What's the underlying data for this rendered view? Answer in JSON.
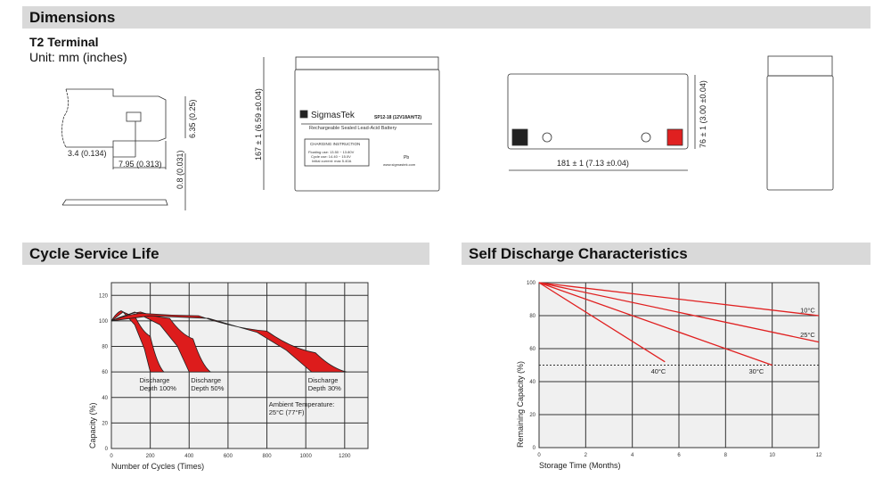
{
  "dimensions": {
    "title": "Dimensions",
    "terminal": "T2 Terminal",
    "unit": "Unit: mm (inches)",
    "terminal_dims": {
      "height": "6.35 (0.25)",
      "offset": "3.4 (0.134)",
      "width": "7.95 (0.313)",
      "thickness": "0.8 (0.031)"
    },
    "front": {
      "height_dim": "167 ± 1 (6.59 ±0.04)",
      "brand": "SigmasTek",
      "model": "SP12-18 (12V18AH/T2)",
      "subtitle": "Rechargeable Sealed Lead-Acid Battery",
      "charging_title": "CHARGING INSTRUCTION",
      "charging_lines": [
        "Floating use: 13.50 ~ 13.80V",
        "Cycle use: 14.40 ~ 15.0V",
        "Initial current: max 5.40A"
      ],
      "website": "www.sigmastek.com",
      "pb": "Pb"
    },
    "top": {
      "length_dim": "181 ± 1 (7.13 ±0.04)",
      "width_dim": "76 ± 1 (3.00 ±0.04)",
      "neg_color": "#222222",
      "pos_color": "#e02020"
    }
  },
  "chart_data": [
    {
      "type": "area",
      "title": "Cycle Service Life",
      "xlabel": "Number of Cycles (Times)",
      "ylabel": "Capacity (%)",
      "xlim": [
        0,
        1320
      ],
      "ylim": [
        0,
        130
      ],
      "xticks": [
        0,
        200,
        400,
        600,
        800,
        1000,
        1200
      ],
      "yticks": [
        0,
        20,
        40,
        60,
        80,
        100,
        120
      ],
      "grid": true,
      "color": "#dd1c1c",
      "series": [
        {
          "name": "Discharge Depth 100%",
          "outer": [
            [
              0,
              100
            ],
            [
              50,
              108
            ],
            [
              120,
              104
            ],
            [
              200,
              88
            ],
            [
              270,
              60
            ]
          ],
          "inner": [
            [
              0,
              100
            ],
            [
              60,
              107
            ],
            [
              120,
              97
            ],
            [
              170,
              78
            ],
            [
              200,
              60
            ]
          ]
        },
        {
          "name": "Discharge Depth 50%",
          "outer": [
            [
              0,
              100
            ],
            [
              150,
              107
            ],
            [
              300,
              102
            ],
            [
              420,
              86
            ],
            [
              510,
              60
            ]
          ],
          "inner": [
            [
              0,
              100
            ],
            [
              120,
              107
            ],
            [
              250,
              97
            ],
            [
              340,
              80
            ],
            [
              400,
              60
            ]
          ]
        },
        {
          "name": "Discharge Depth 30%",
          "outer": [
            [
              0,
              100
            ],
            [
              150,
              106
            ],
            [
              450,
              104
            ],
            [
              800,
              92
            ],
            [
              1050,
              75
            ],
            [
              1210,
              60
            ]
          ],
          "inner": [
            [
              0,
              100
            ],
            [
              200,
              104
            ],
            [
              500,
              102
            ],
            [
              750,
              91
            ],
            [
              900,
              77
            ],
            [
              1030,
              60
            ]
          ]
        }
      ],
      "annotation": [
        "Ambient Temperature:",
        "25°C (77°F)"
      ]
    },
    {
      "type": "line",
      "title": "Self Discharge Characteristics",
      "xlabel": "Storage Time (Months)",
      "ylabel": "Remaining Capacity (%)",
      "xlim": [
        0,
        12
      ],
      "ylim": [
        0,
        100
      ],
      "xticks": [
        0,
        2,
        4,
        6,
        8,
        10,
        12
      ],
      "yticks": [
        0,
        20,
        40,
        60,
        80,
        100
      ],
      "grid": true,
      "color": "#e02020",
      "reference_line": 50,
      "series": [
        {
          "name": "10°C",
          "x": [
            0,
            12
          ],
          "y": [
            100,
            80
          ]
        },
        {
          "name": "25°C",
          "x": [
            0,
            12
          ],
          "y": [
            100,
            64
          ]
        },
        {
          "name": "30°C",
          "x": [
            0,
            10
          ],
          "y": [
            100,
            50
          ]
        },
        {
          "name": "40°C",
          "x": [
            0,
            5.4
          ],
          "y": [
            100,
            52
          ]
        }
      ]
    }
  ]
}
